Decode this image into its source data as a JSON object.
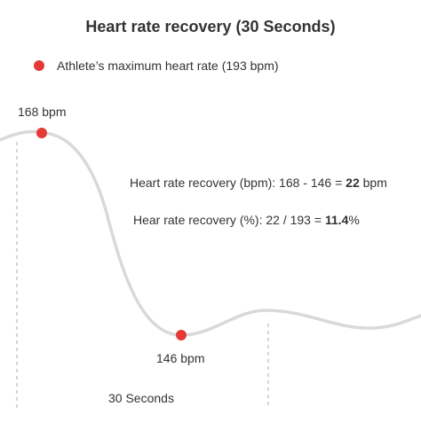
{
  "title": "Heart rate recovery (30 Seconds)",
  "legend": {
    "label": "Athlete’s maximum heart rate (193 bpm)",
    "marker_color": "#e53935"
  },
  "peak": {
    "label": "168 bpm",
    "value": 168
  },
  "low": {
    "label": "146 bpm",
    "value": 146
  },
  "interval_label": "30 Seconds",
  "calc_bpm": {
    "prefix": "Heart rate recovery (bpm): 168 - 146 = ",
    "result": "22",
    "suffix": " bpm"
  },
  "calc_pct": {
    "prefix": "Hear rate recovery (%): 22 / 193 = ",
    "result": "11.4",
    "suffix": "%"
  },
  "colors": {
    "curve": "#d9d9d9",
    "marker": "#e53935",
    "guide": "#c8c8c8",
    "text": "#333333"
  }
}
